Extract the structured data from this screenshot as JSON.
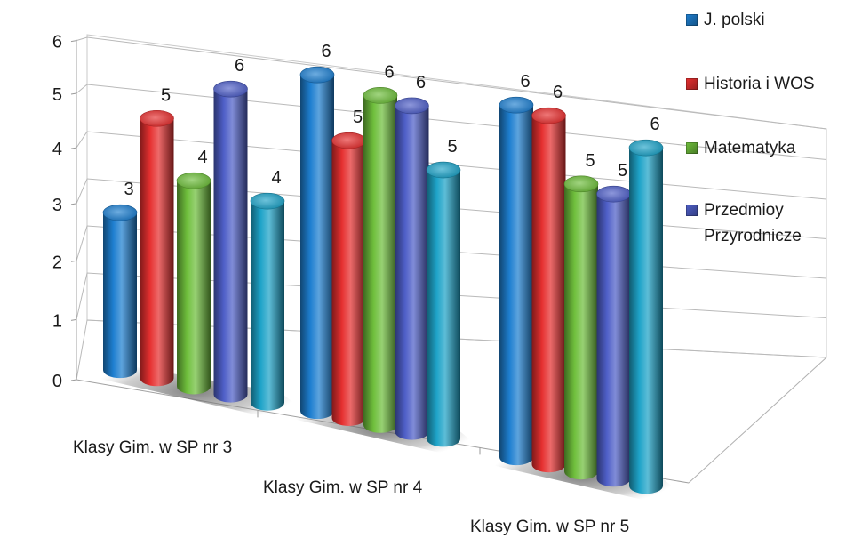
{
  "chart_data": {
    "type": "bar",
    "style": "3d-cylinder",
    "categories": [
      "Klasy Gim. w SP nr 3",
      "Klasy Gim. w SP nr 4",
      "Klasy Gim. w SP nr 5"
    ],
    "series": [
      {
        "name": "J. polski",
        "color": "#1e7fd0",
        "values": [
          3,
          6,
          6
        ]
      },
      {
        "name": "Historia i WOS",
        "color": "#e63030",
        "values": [
          5,
          5,
          6
        ]
      },
      {
        "name": "Matematyka",
        "color": "#6fbf3c",
        "values": [
          4,
          6,
          5
        ]
      },
      {
        "name": "Przedmioy Przyrodnicze",
        "color": "#4f5fc8",
        "values": [
          6,
          6,
          5
        ]
      },
      {
        "name": "",
        "color": "#1ea3c8",
        "values": [
          4,
          5,
          6
        ]
      }
    ],
    "ylim": [
      0,
      6
    ],
    "yticks": [
      "0",
      "1",
      "2",
      "3",
      "4",
      "5",
      "6"
    ],
    "grid": true,
    "legend": "right"
  },
  "legend": [
    {
      "name": "J. polski",
      "color": "#1e7fd0"
    },
    {
      "name": "Historia i WOS",
      "color": "#e63030"
    },
    {
      "name": "Matematyka",
      "color": "#6fbf3c"
    },
    {
      "name": "Przedmioy Przyrodnicze",
      "color": "#4f5fc8"
    }
  ]
}
